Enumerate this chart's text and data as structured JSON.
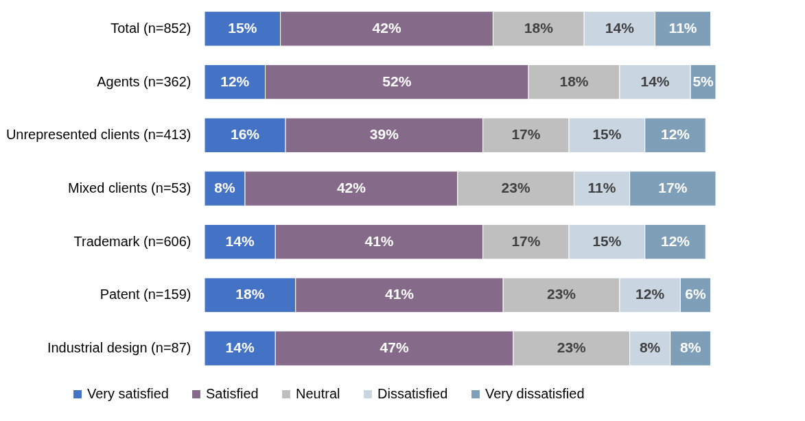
{
  "chart_data": {
    "type": "bar",
    "orientation": "horizontal",
    "stacked": true,
    "legend": "bottom",
    "categories": [
      "Total (n=852)",
      "Agents (n=362)",
      "Unrepresented clients (n=413)",
      "Mixed clients (n=53)",
      "Trademark (n=606)",
      "Patent (n=159)",
      "Industrial design (n=87)"
    ],
    "series": [
      {
        "name": "Very satisfied",
        "color": "#4472c4",
        "values": [
          15,
          12,
          16,
          8,
          14,
          18,
          14
        ],
        "value_labels": [
          "15%",
          "12%",
          "16%",
          "8%",
          "14%",
          "18%",
          "14%"
        ]
      },
      {
        "name": "Satisfied",
        "color": "#866a8a",
        "values": [
          42,
          52,
          39,
          42,
          41,
          41,
          47
        ],
        "value_labels": [
          "42%",
          "52%",
          "39%",
          "42%",
          "41%",
          "41%",
          "47%"
        ]
      },
      {
        "name": "Neutral",
        "color": "#bfbfbf",
        "values": [
          18,
          18,
          17,
          23,
          17,
          23,
          23
        ],
        "value_labels": [
          "18%",
          "18%",
          "17%",
          "23%",
          "17%",
          "23%",
          "23%"
        ]
      },
      {
        "name": "Dissatisfied",
        "color": "#c9d6e1",
        "values": [
          14,
          14,
          15,
          11,
          15,
          12,
          8
        ],
        "value_labels": [
          "14%",
          "14%",
          "15%",
          "11%",
          "15%",
          "12%",
          "8%"
        ]
      },
      {
        "name": "Very dissatisfied",
        "color": "#7f9fb8",
        "values": [
          11,
          5,
          12,
          17,
          12,
          6,
          8
        ],
        "value_labels": [
          "11%",
          "5%",
          "12%",
          "17%",
          "12%",
          "6%",
          "8%"
        ]
      }
    ]
  }
}
